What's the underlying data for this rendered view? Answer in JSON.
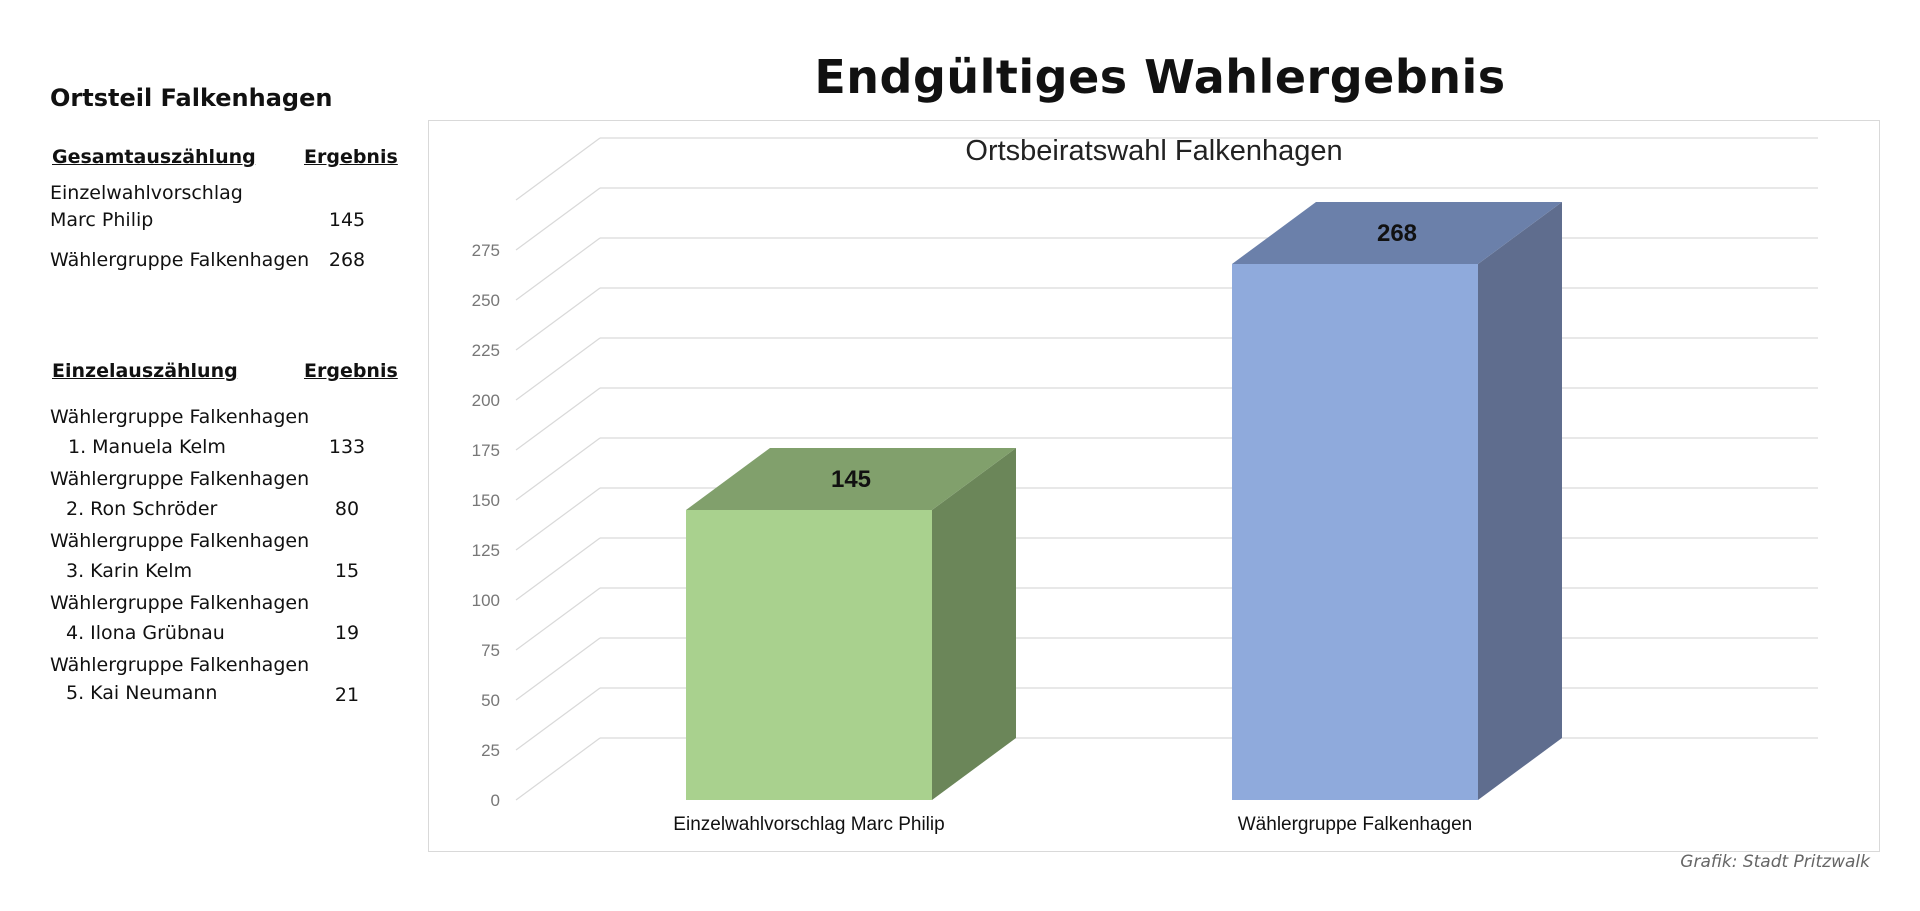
{
  "page": {
    "title": "Endgültiges Wahlergebnis",
    "credit": "Grafik: Stadt Pritzwalk"
  },
  "side": {
    "district": "Ortsteil Falkenhagen",
    "total": {
      "heading": "Gesamtauszählung",
      "result_heading": "Ergebnis",
      "rows": [
        {
          "lines": [
            "Einzelwahlvorschlag",
            "Marc Philip"
          ],
          "value": "145"
        },
        {
          "lines": [
            "Wählergruppe Falkenhagen"
          ],
          "value": "268"
        }
      ]
    },
    "single": {
      "heading": "Einzelauszählung",
      "result_heading": "Ergebnis",
      "rows": [
        {
          "group": "Wählergruppe Falkenhagen",
          "candidate": "1.  Manuela Kelm",
          "value": "133"
        },
        {
          "group": "Wählergruppe Falkenhagen",
          "candidate": "2. Ron Schröder",
          "value": "80"
        },
        {
          "group": "Wählergruppe Falkenhagen",
          "candidate": "3. Karin Kelm",
          "value": "15"
        },
        {
          "group": "Wählergruppe Falkenhagen",
          "candidate": "4. Ilona Grübnau",
          "value": "19"
        },
        {
          "group": "Wählergruppe Falkenhagen",
          "candidate": "5. Kai Neumann",
          "value": "21"
        }
      ]
    }
  },
  "chart_data": {
    "type": "bar",
    "title": "Ortsbeiratswahl Falkenhagen",
    "categories": [
      "Einzelwahlvorschlag Marc Philip",
      "Wählergruppe Falkenhagen"
    ],
    "values": [
      145,
      268
    ],
    "colors": [
      "#a9d18e",
      "#8faadc"
    ],
    "side_colors": [
      "#6b8659",
      "#5f6d8e"
    ],
    "top_colors": [
      "#81a06c",
      "#6b80aa"
    ],
    "yticks": [
      0,
      25,
      50,
      75,
      100,
      125,
      150,
      175,
      200,
      225,
      250,
      275
    ],
    "ylim": [
      0,
      300
    ],
    "grid": true,
    "three_d": true,
    "data_labels": true
  }
}
